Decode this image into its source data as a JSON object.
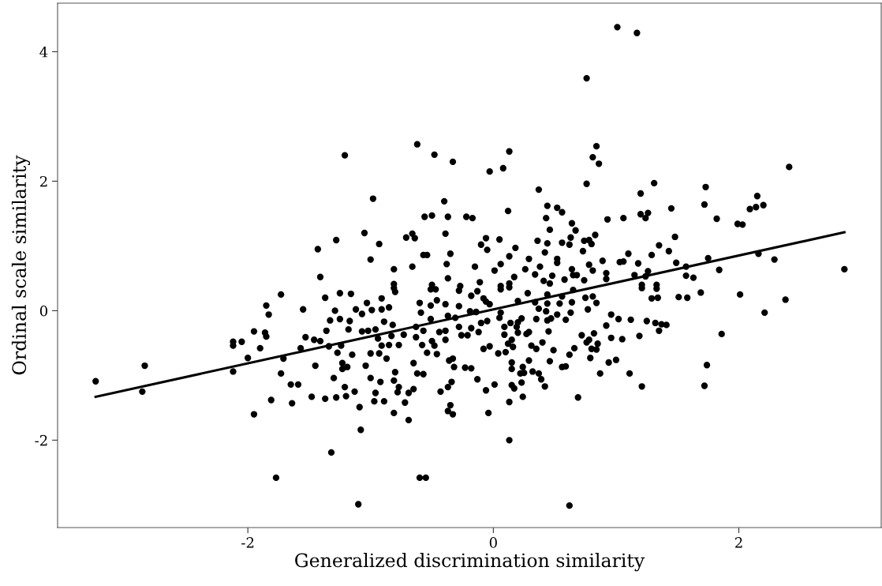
{
  "chart_data": {
    "type": "scatter",
    "xlabel": "Generalized discrimination similarity",
    "ylabel": "Ordinal scale similarity",
    "xlim": [
      -3.55,
      3.16
    ],
    "ylim": [
      -3.35,
      4.75
    ],
    "xticks": [
      -2,
      0,
      2
    ],
    "yticks": [
      -2,
      0,
      2,
      4
    ],
    "grid": false,
    "legend": false,
    "series": [
      {
        "marker": "circle",
        "color": "#000000",
        "x": [
          -3.24,
          -2.84,
          -2.86,
          -2.12,
          -2.12,
          -2.05,
          -1.95,
          -1.86,
          -1.85,
          -1.9,
          -2.0,
          -2.12,
          -1.95,
          -1.81,
          -1.85,
          -1.83,
          -1.73,
          -1.77,
          -1.71,
          -1.73,
          -1.65,
          -1.59,
          -1.64,
          -1.55,
          -1.53,
          -1.57,
          -1.46,
          -1.41,
          -1.45,
          -1.48,
          -1.37,
          -1.33,
          -1.36,
          -1.34,
          -1.3,
          -1.37,
          -1.32,
          -1.25,
          -1.16,
          -1.29,
          -1.25,
          -1.17,
          -1.18,
          -1.24,
          -1.27,
          -1.23,
          -1.15,
          -1.19,
          -1.23,
          -1.21,
          -1.28,
          -1.2,
          -1.13,
          -1.09,
          -1.08,
          -1.1,
          -1.12,
          -1.07,
          -1.03,
          -0.99,
          -1.07,
          -1.02,
          -0.96,
          -0.94,
          -1.0,
          -1.04,
          -1.0,
          -0.96,
          -0.97,
          -0.92,
          -0.91,
          -0.91,
          -0.85,
          -0.89,
          -0.91,
          -0.93,
          -0.87,
          -0.85,
          -0.83,
          -0.82,
          -0.77,
          -0.73,
          -0.81,
          -0.8,
          -0.8,
          -0.81,
          -0.77,
          -0.78,
          -0.81,
          -0.89,
          -0.72,
          -0.69,
          -0.69,
          -0.65,
          -0.65,
          -0.62,
          -0.57,
          -0.63,
          -0.63,
          -0.57,
          -0.58,
          -0.6,
          -0.59,
          -0.51,
          -0.51,
          -0.5,
          -0.48,
          -0.54,
          -0.46,
          -0.6,
          -0.55,
          -0.51,
          -0.47,
          -0.44,
          -0.39,
          -0.39,
          -0.43,
          -0.37,
          -0.36,
          -0.33,
          -0.32,
          -0.34,
          -0.35,
          -0.37,
          -0.33,
          -0.46,
          -0.39,
          -0.28,
          -0.28,
          -0.26,
          -0.28,
          -0.23,
          -0.37,
          -0.31,
          -1.21,
          -0.62,
          -0.48,
          -0.33,
          -0.98,
          -0.4,
          -0.56,
          -0.5,
          -0.37,
          -0.22,
          -0.39,
          -1.05,
          -1.28,
          -1.43,
          -0.93,
          -0.71,
          -0.66,
          -0.64,
          -1.0,
          -0.57,
          -0.54,
          -0.35,
          -0.38,
          -1.41,
          -0.81,
          -0.66,
          -0.37,
          -0.81,
          -0.5,
          -0.27,
          1.01,
          1.17,
          0.76,
          0.84,
          0.81,
          0.86,
          0.13,
          0.08,
          -0.03,
          2.41,
          0.76,
          1.31,
          1.2,
          1.73,
          1.72,
          2.15,
          2.09,
          2.14,
          2.2,
          0.37,
          0.12,
          -0.17,
          0.44,
          0.52,
          0.56,
          0.43,
          0.64,
          0.67,
          0.46,
          0.93,
          1.06,
          1.2,
          1.26,
          1.24,
          1.45,
          1.82,
          1.99,
          2.03,
          1.48,
          2.29,
          2.86,
          2.16,
          1.75,
          1.84,
          1.43,
          1.35,
          1.29,
          1.49,
          1.57,
          1.57,
          1.63,
          1.1,
          1.03,
          1.06,
          1.18,
          1.26,
          1.24,
          1.15,
          1.21,
          1.33,
          0.89,
          0.92,
          0.92,
          0.83,
          0.78,
          0.74,
          0.8,
          0.73,
          0.78,
          0.81,
          0.74,
          0.63,
          0.62,
          0.56,
          0.44,
          0.36,
          0.42,
          0.52,
          0.52,
          0.38,
          0.29,
          0.26,
          0.34,
          0.64,
          0.65,
          0.68,
          0.58,
          0.48,
          0.41,
          0.46,
          0.18,
          0.13,
          0.05,
          -0.06,
          -0.1,
          -0.05,
          -0.15,
          0.01,
          0.06,
          0.17,
          0.13,
          -0.11,
          0.06,
          2.01,
          2.38,
          2.21,
          1.86,
          1.74,
          1.72,
          1.69,
          1.58,
          1.51,
          1.33,
          1.29,
          1.34,
          1.21,
          1.25,
          1.32,
          1.37,
          1.41,
          1.35,
          1.19,
          1.12,
          1.02,
          0.96,
          0.92,
          0.96,
          1.05,
          1.11,
          1.21,
          1.0,
          0.94,
          0.87,
          0.77,
          0.84,
          0.81,
          0.75,
          0.64,
          0.63,
          0.59,
          0.52,
          0.54,
          0.56,
          0.65,
          0.72,
          0.82,
          0.78,
          0.76,
          0.85,
          0.8,
          0.84,
          0.79,
          0.66,
          0.62,
          0.69,
          0.62,
          0.59,
          0.56,
          0.49,
          0.46,
          0.45,
          0.44,
          0.47,
          0.43,
          0.44,
          0.37,
          0.34,
          0.44,
          0.35,
          0.4,
          0.35,
          0.31,
          0.29,
          0.32,
          0.37,
          0.39,
          0.42,
          0.29,
          0.27,
          0.23,
          0.2,
          0.2,
          0.28,
          0.13,
          0.06,
          0.2,
          0.19,
          0.14,
          0.09,
          0.09,
          0.05,
          0.06,
          0.15,
          0.12,
          0.16,
          0.1,
          0.04,
          0.15,
          0.15,
          0.24,
          0.22,
          0.25,
          0.23,
          0.15,
          0.17,
          0.24,
          0.13,
          0.01,
          -0.06,
          -0.04,
          0.13,
          -0.13,
          -0.18,
          -0.08,
          -0.03,
          -0.05,
          -0.1,
          -0.12,
          -0.18,
          -0.21,
          -0.19,
          -0.14,
          -0.18,
          -0.13,
          -0.08,
          -0.06,
          -0.03
        ],
        "values": [
          -1.09,
          -0.85,
          -1.25,
          -0.48,
          -0.54,
          -0.48,
          -0.32,
          -0.34,
          -0.4,
          -0.58,
          -0.73,
          -0.94,
          -1.6,
          -1.38,
          0.08,
          -0.06,
          0.25,
          -2.58,
          -0.74,
          -0.97,
          -1.14,
          -1.14,
          -1.43,
          0.02,
          -0.41,
          -0.58,
          -0.45,
          -0.47,
          -0.85,
          -1.33,
          0.2,
          -0.15,
          -0.31,
          -0.55,
          -1.04,
          -1.36,
          -2.19,
          0.27,
          0.26,
          0.0,
          -0.13,
          -0.16,
          -0.29,
          -0.54,
          -0.65,
          -0.81,
          -0.68,
          -0.87,
          -0.9,
          -1.18,
          -1.34,
          -1.32,
          -1.25,
          -1.49,
          -1.84,
          -2.99,
          0.02,
          -0.05,
          0.12,
          0.01,
          -0.32,
          -0.31,
          -0.29,
          -0.43,
          -0.66,
          -0.85,
          -1.04,
          -1.27,
          -1.4,
          -1.1,
          0.19,
          0.02,
          0.05,
          -0.17,
          -0.54,
          -0.66,
          -0.74,
          -0.53,
          -0.39,
          -0.22,
          -0.53,
          -0.37,
          0.35,
          0.29,
          -0.95,
          -1.08,
          -1.18,
          -1.26,
          -1.58,
          -1.4,
          -1.42,
          -1.69,
          -1.27,
          -1.21,
          -0.81,
          -0.97,
          -0.98,
          -0.25,
          -0.41,
          -0.31,
          -0.53,
          0.12,
          -0.03,
          0.08,
          -0.13,
          -0.47,
          -0.54,
          -0.65,
          -0.67,
          -2.58,
          -2.58,
          0.33,
          0.33,
          -0.33,
          -0.31,
          -0.45,
          -1.25,
          -1.18,
          -0.77,
          -0.74,
          -0.87,
          -1.1,
          -1.46,
          -1.55,
          -1.6,
          0.16,
          0.1,
          0.07,
          -0.25,
          -0.38,
          0.31,
          -0.88,
          -0.08,
          -0.11,
          2.4,
          2.57,
          2.41,
          2.3,
          1.73,
          1.69,
          1.45,
          1.47,
          1.45,
          1.45,
          1.19,
          1.2,
          1.09,
          0.95,
          1.03,
          1.13,
          1.19,
          1.12,
          0.79,
          0.86,
          0.86,
          0.88,
          0.72,
          0.52,
          0.64,
          0.68,
          0.5,
          0.41,
          0.4,
          0.38,
          4.38,
          4.29,
          3.59,
          2.54,
          2.37,
          2.27,
          2.46,
          2.2,
          2.15,
          2.22,
          1.96,
          1.97,
          1.81,
          1.91,
          1.64,
          1.77,
          1.57,
          1.6,
          1.63,
          1.87,
          1.54,
          1.43,
          1.62,
          1.59,
          1.52,
          1.43,
          1.35,
          1.24,
          1.25,
          1.41,
          1.43,
          1.49,
          1.51,
          1.43,
          1.58,
          1.42,
          1.34,
          1.33,
          1.14,
          0.79,
          0.64,
          0.88,
          0.81,
          0.63,
          0.92,
          1.01,
          0.86,
          0.74,
          0.68,
          0.54,
          0.51,
          0.88,
          0.75,
          0.76,
          0.73,
          0.61,
          0.53,
          0.55,
          0.4,
          0.4,
          0.77,
          0.58,
          0.49,
          1.17,
          1.09,
          1.08,
          1.03,
          0.92,
          0.71,
          0.62,
          0.47,
          1.13,
          1.02,
          1.05,
          1.04,
          1.08,
          0.9,
          0.8,
          0.74,
          0.68,
          0.8,
          0.64,
          0.56,
          0.64,
          0.55,
          0.55,
          0.48,
          0.54,
          0.46,
          0.42,
          0.97,
          0.84,
          1.1,
          1.12,
          1.02,
          0.94,
          0.68,
          0.62,
          0.72,
          0.52,
          0.42,
          0.44,
          0.38,
          0.25,
          0.17,
          -0.03,
          -0.36,
          -0.84,
          -1.16,
          0.28,
          0.2,
          0.21,
          0.34,
          0.19,
          0.2,
          0.35,
          -0.16,
          -0.19,
          -0.21,
          -0.22,
          -0.31,
          -0.39,
          -0.14,
          -0.13,
          -0.06,
          -0.23,
          -0.42,
          -0.44,
          -0.97,
          -1.17,
          -0.76,
          -0.8,
          -0.97,
          0.02,
          0.12,
          0.22,
          0.2,
          0.13,
          -0.03,
          -0.14,
          -0.06,
          0.11,
          0.22,
          0.32,
          -0.38,
          -0.35,
          -0.45,
          -0.49,
          -0.51,
          -0.59,
          -0.6,
          -0.73,
          -0.58,
          -0.68,
          -1.34,
          -3.01,
          -0.86,
          -0.87,
          -0.61,
          -0.78,
          -0.32,
          -0.15,
          -0.12,
          -0.01,
          0.11,
          0.03,
          0.13,
          0.25,
          -0.13,
          -0.49,
          -0.59,
          -0.54,
          -0.77,
          -0.94,
          -0.97,
          -1.06,
          -1.17,
          -0.33,
          -0.36,
          -0.12,
          -0.18,
          0.15,
          0.27,
          0.36,
          0.33,
          -0.34,
          -0.25,
          -0.19,
          -0.25,
          -0.37,
          -0.11,
          -0.03,
          -0.45,
          -0.51,
          -0.56,
          -0.64,
          -0.66,
          -0.8,
          -0.9,
          -0.87,
          -0.97,
          -0.96,
          -1.11,
          -1.15,
          -1.2,
          -1.33,
          -1.41,
          -1.14,
          -1.23,
          -1.58,
          -2.0,
          -1.06,
          -0.89,
          -0.59,
          -0.55,
          -0.16,
          -0.19,
          -0.33,
          -0.27,
          -0.38,
          -0.01,
          -0.02,
          0.23,
          0.3,
          0.19,
          0.14,
          0.1
        ]
      },
      {
        "type": "line",
        "color": "#000000",
        "x": [
          -3.24,
          2.86
        ],
        "values": [
          -1.33,
          1.21
        ]
      }
    ]
  }
}
